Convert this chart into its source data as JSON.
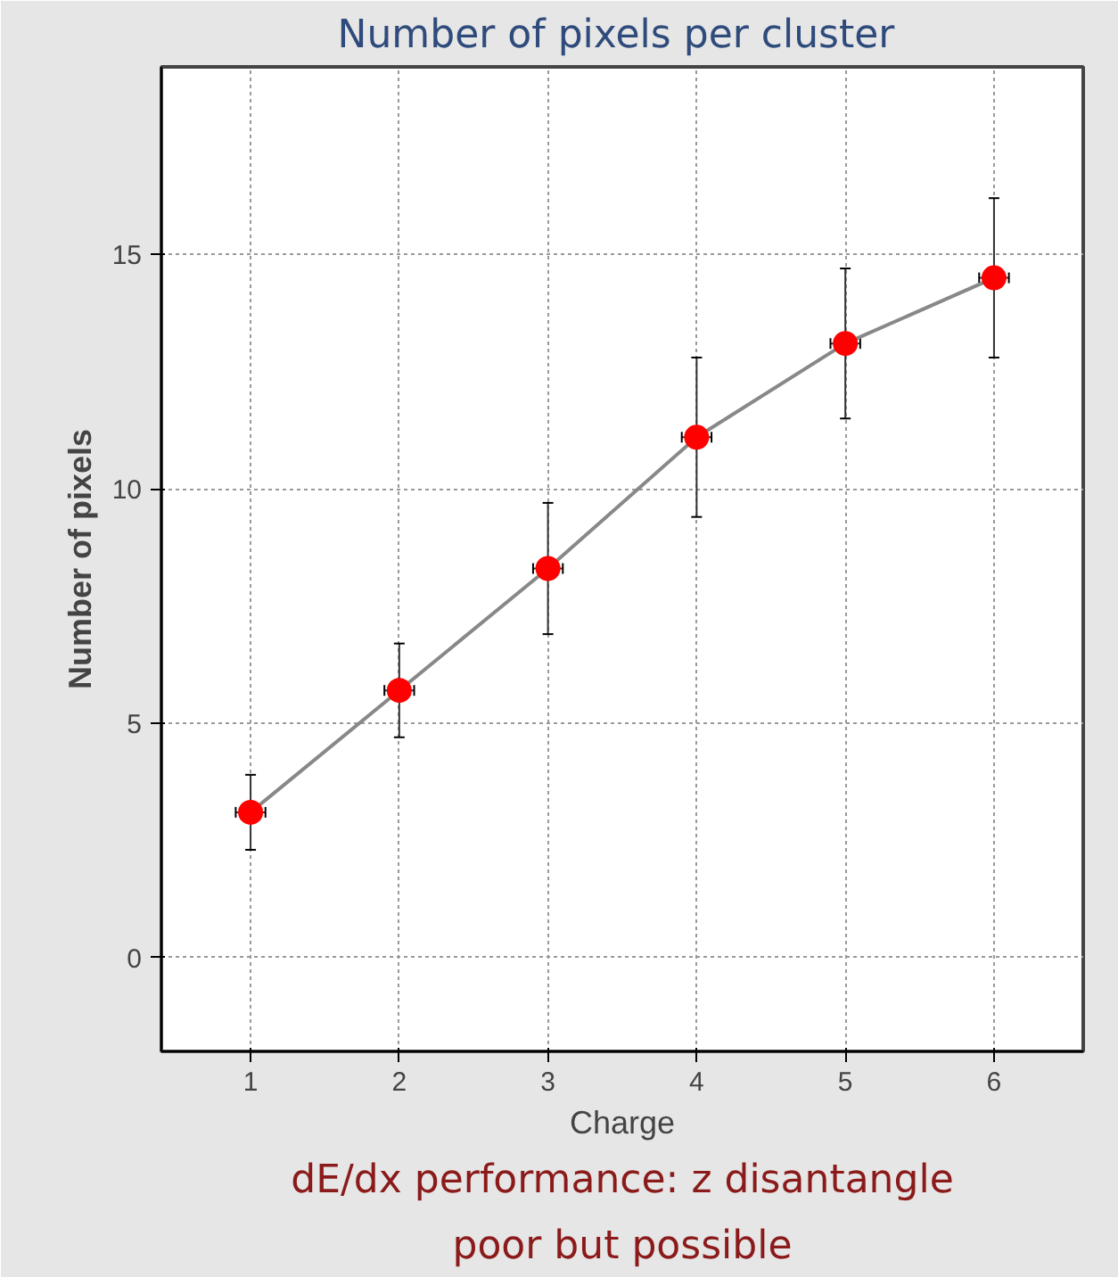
{
  "chart_data": {
    "type": "line",
    "title": "Number of pixels  per cluster",
    "xlabel": "Charge",
    "ylabel": "Number of pixels",
    "x": [
      1,
      2,
      3,
      4,
      5,
      6
    ],
    "series": [
      {
        "color": "#ff0000",
        "values": [
          3.1,
          5.7,
          8.3,
          11.1,
          13.1,
          14.5
        ],
        "errors": [
          0.8,
          1.0,
          1.4,
          1.7,
          1.6,
          1.7
        ],
        "xerrors": [
          0.1,
          0.1,
          0.1,
          0.1,
          0.1,
          0.1
        ]
      }
    ],
    "xlim": [
      0.4,
      6.6
    ],
    "xticks": [
      1,
      2,
      3,
      4,
      5,
      6
    ],
    "ylim": [
      -2,
      19
    ],
    "yticks": [
      0,
      5,
      10,
      15
    ],
    "grid": true,
    "marker": "circle",
    "line_style": "solid",
    "annotations": [
      "dE/dx performance: z disantangle\npoor but possible"
    ]
  }
}
